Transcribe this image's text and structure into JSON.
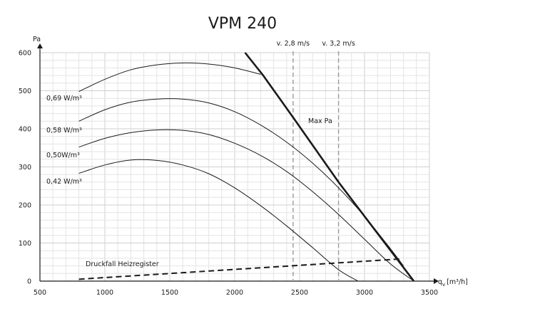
{
  "chart_data": {
    "type": "line",
    "title": "VPM 240",
    "ylabel": "Pa",
    "xlabel": "q",
    "xlabel_sub": "v",
    "xlabel_unit": "[m³/h]",
    "xlim": [
      500,
      3500
    ],
    "ylim": [
      0,
      600
    ],
    "x_ticks": [
      "500",
      "1000",
      "1500",
      "2000",
      "2500",
      "3000",
      "3500"
    ],
    "y_ticks": [
      "0",
      "100",
      "200",
      "300",
      "400",
      "500",
      "600"
    ],
    "grid": true,
    "series": [
      {
        "name": "0,69 W/m³",
        "x": [
          800,
          1000,
          1200,
          1400,
          1600,
          1800,
          2000,
          2200
        ],
        "y": [
          498,
          530,
          555,
          568,
          573,
          570,
          560,
          543
        ]
      },
      {
        "name": "0,58 W/m³",
        "x": [
          800,
          1000,
          1200,
          1400,
          1600,
          1800,
          2000,
          2200,
          2400,
          2600,
          2800,
          3000,
          3200,
          3300
        ],
        "y": [
          420,
          450,
          470,
          478,
          478,
          468,
          445,
          410,
          365,
          310,
          245,
          170,
          85,
          40
        ]
      },
      {
        "name": "0,50W/m³",
        "x": [
          800,
          1000,
          1200,
          1400,
          1600,
          1800,
          2000,
          2200,
          2400,
          2600,
          2800,
          3000,
          3200,
          3380
        ],
        "y": [
          352,
          375,
          390,
          397,
          396,
          385,
          362,
          330,
          288,
          235,
          175,
          110,
          45,
          0
        ]
      },
      {
        "name": "0,42 W/m³",
        "x": [
          800,
          1000,
          1200,
          1400,
          1600,
          1800,
          2000,
          2200,
          2400,
          2600,
          2800,
          2950
        ],
        "y": [
          283,
          305,
          318,
          317,
          305,
          282,
          245,
          198,
          145,
          88,
          30,
          0
        ]
      },
      {
        "name": "Max Pa",
        "x": [
          2080,
          2220,
          2450,
          2800,
          3380
        ],
        "y": [
          600,
          540,
          430,
          260,
          0
        ]
      },
      {
        "name": "Druckfall Heizregister",
        "x": [
          800,
          3270
        ],
        "y": [
          5,
          58
        ]
      }
    ],
    "vlines": [
      {
        "label": "v. 2,8 m/s",
        "x": 2450
      },
      {
        "label": "v. 3,2 m/s",
        "x": 2800
      }
    ]
  }
}
